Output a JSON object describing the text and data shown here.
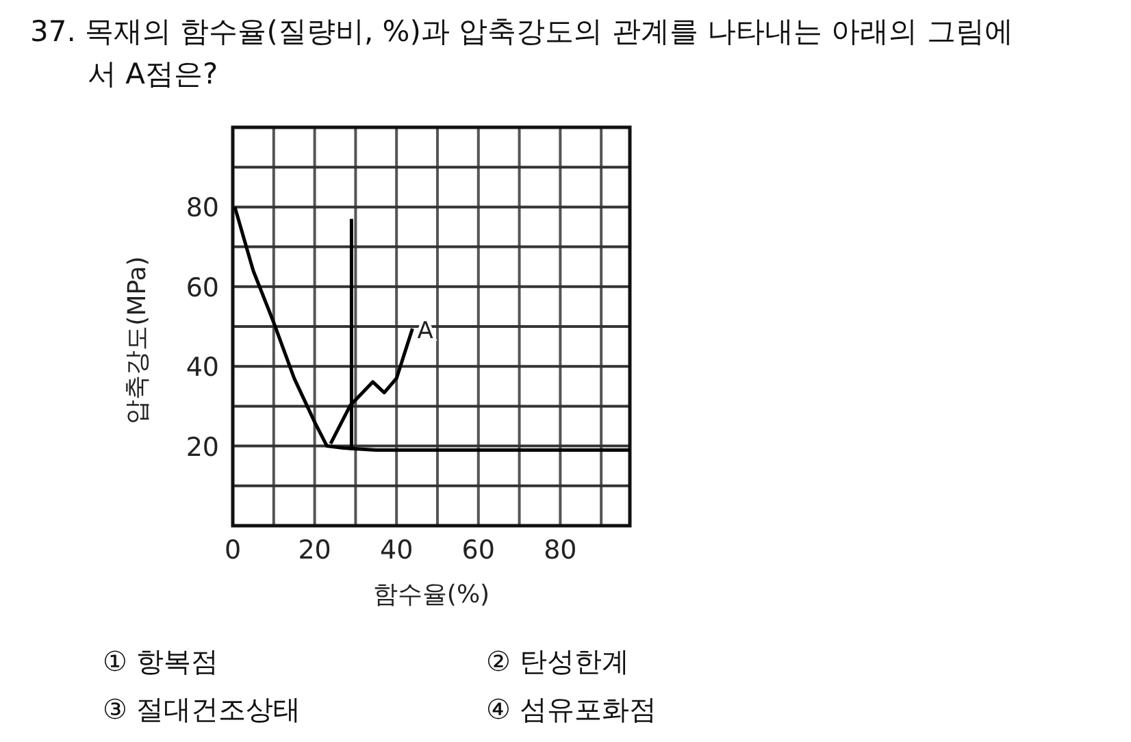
{
  "chart_data": {
    "type": "line",
    "title": "37. 목재의 함수율(질량비, %)과 압축강도의 관계를 나타내는 아래의 그림에서 A점은?",
    "xlabel": "함수율(%)",
    "ylabel": "압축강도(MPa)",
    "xlim": [
      0,
      97
    ],
    "ylim": [
      0,
      100
    ],
    "xticks": [
      0,
      {
        "value": 10,
        "label": null
      },
      20,
      {
        "value": 30,
        "label": null
      },
      40,
      {
        "value": 50,
        "label": null
      },
      60,
      {
        "value": 70,
        "label": null
      },
      80,
      {
        "value": 90,
        "label": null
      }
    ],
    "yticks": [
      {
        "value": 10,
        "label": null
      },
      20,
      {
        "value": 30,
        "label": null
      },
      40,
      {
        "value": 50,
        "label": null
      },
      60,
      {
        "value": 70,
        "label": null
      },
      80,
      {
        "value": 90,
        "label": null
      }
    ],
    "grid": true,
    "marker": "none",
    "series": [
      {
        "color": "#000000",
        "x": [
          0.5,
          5,
          10,
          15,
          20,
          23,
          27,
          35,
          50,
          97
        ],
        "values": [
          80,
          64,
          51,
          37,
          26,
          20,
          19.5,
          19,
          19,
          19
        ]
      },
      {
        "color": "#000000",
        "x": [
          29,
          29
        ],
        "values": [
          19,
          77
        ]
      },
      {
        "color": "#000000",
        "x": [
          23.9,
          28.7,
          34.2,
          37,
          40,
          43.9
        ],
        "values": [
          20.6,
          30.2,
          36.1,
          33.4,
          37,
          49.5
        ]
      }
    ],
    "annotations": [
      {
        "text": "A",
        "x": 45,
        "y": 47
      },
      "① 항복점",
      "② 탄성한계",
      "③ 절대건조상태",
      "④ 섬유포화점"
    ]
  }
}
